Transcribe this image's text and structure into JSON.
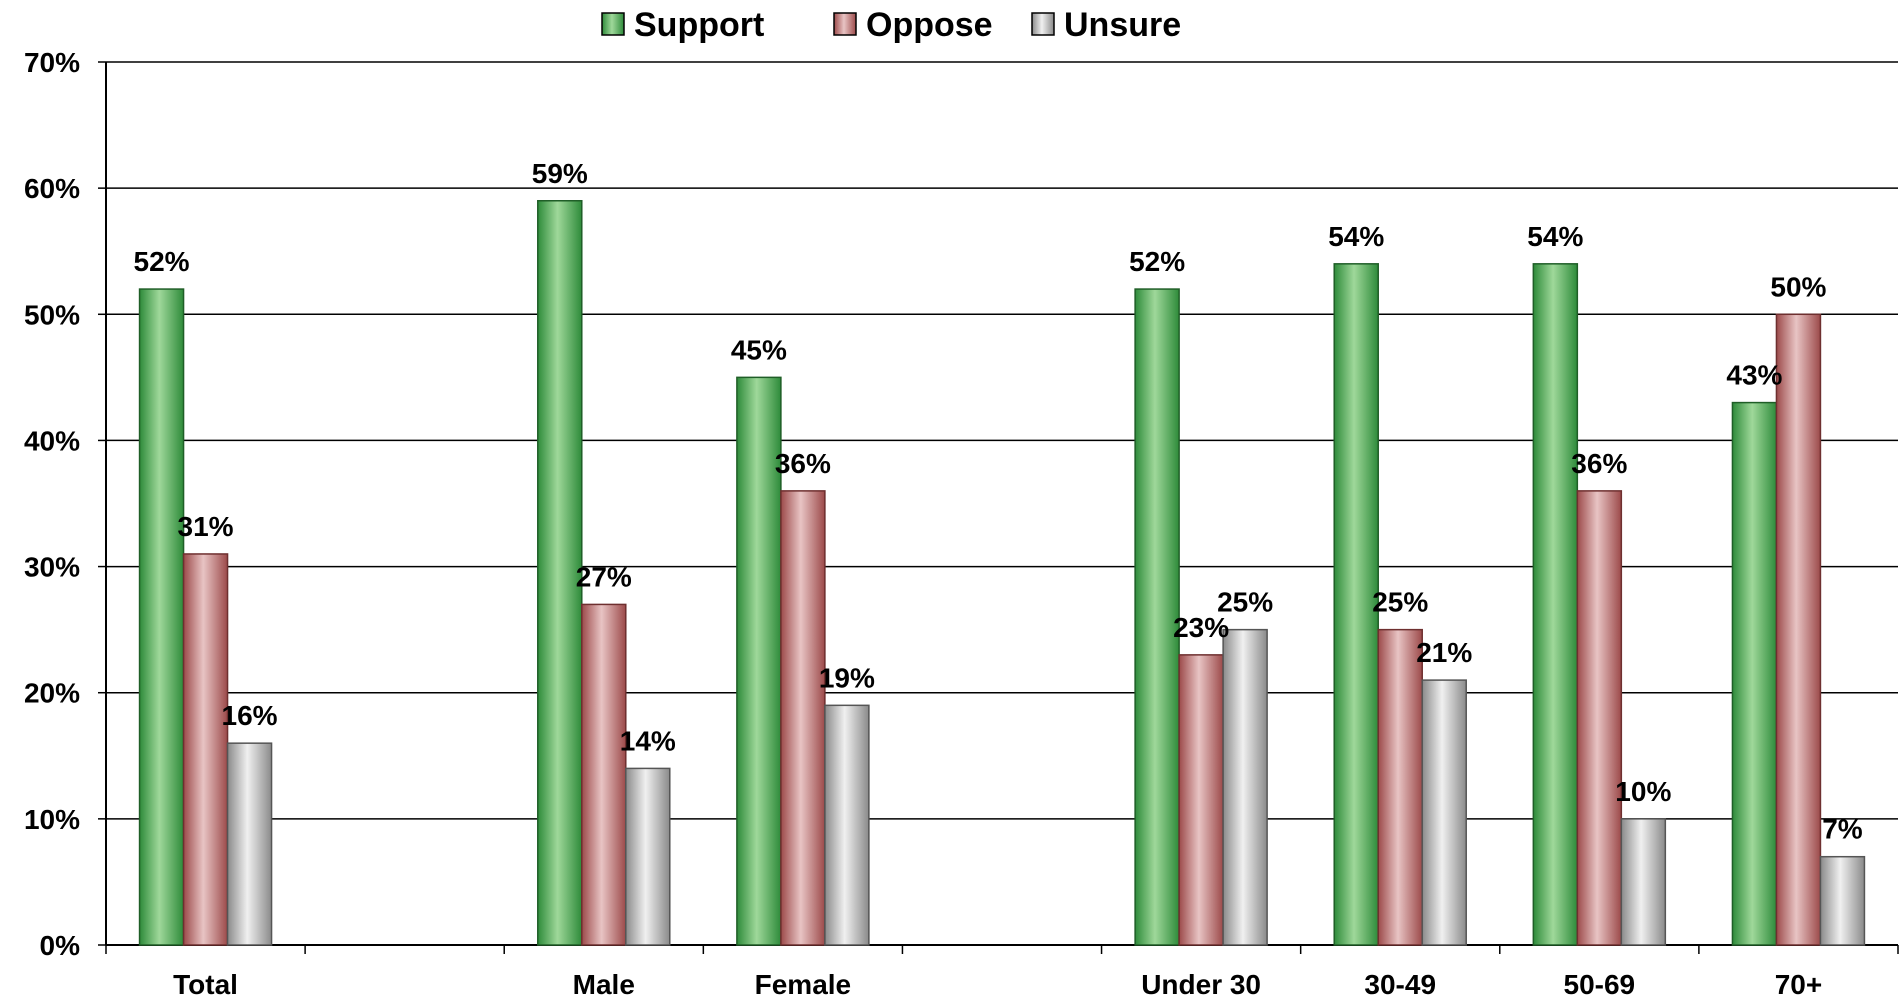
{
  "chart_data": {
    "type": "bar",
    "title": "",
    "xlabel": "",
    "ylabel": "",
    "ylim": [
      0,
      70
    ],
    "y_ticks": [
      "0%",
      "10%",
      "20%",
      "30%",
      "40%",
      "50%",
      "60%",
      "70%"
    ],
    "grid": true,
    "legend_position": "top-center",
    "categories": [
      "Total",
      "",
      "Male",
      "Female",
      "",
      "Under 30",
      "30-49",
      "50-69",
      "70+"
    ],
    "series": [
      {
        "name": "Support",
        "color": "#4daf4a",
        "values": [
          52,
          null,
          59,
          45,
          null,
          52,
          54,
          54,
          43
        ],
        "labels": [
          "52%",
          "",
          "59%",
          "45%",
          "",
          "52%",
          "54%",
          "54%",
          "43%"
        ]
      },
      {
        "name": "Oppose",
        "color": "#c08080",
        "values": [
          31,
          null,
          27,
          36,
          null,
          23,
          25,
          36,
          50
        ],
        "labels": [
          "31%",
          "",
          "27%",
          "36%",
          "",
          "23%",
          "25%",
          "36%",
          "50%"
        ]
      },
      {
        "name": "Unsure",
        "color": "#b0b0b0",
        "values": [
          16,
          null,
          14,
          19,
          null,
          25,
          21,
          10,
          7
        ],
        "labels": [
          "16%",
          "",
          "14%",
          "19%",
          "",
          "25%",
          "21%",
          "10%",
          "7%"
        ]
      }
    ]
  }
}
